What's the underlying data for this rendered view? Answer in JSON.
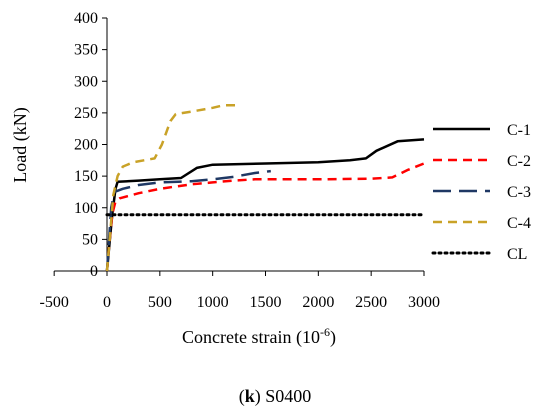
{
  "chart_data": {
    "type": "line",
    "xlabel_main": "Concrete strain (10",
    "xlabel_sup": "-6",
    "xlabel_end": ")",
    "ylabel": "Load (kN)",
    "xlim": [
      -500,
      3000
    ],
    "ylim": [
      0,
      400
    ],
    "xticks": [
      -500,
      0,
      500,
      1000,
      1500,
      2000,
      2500,
      3000
    ],
    "yticks": [
      0,
      50,
      100,
      150,
      200,
      250,
      300,
      350,
      400
    ],
    "grid": false,
    "legend_position": "right",
    "series": [
      {
        "name": "C-1",
        "color": "#000000",
        "dash": "solid",
        "x": [
          0,
          25,
          50,
          80,
          100,
          300,
          500,
          700,
          850,
          1000,
          1500,
          2000,
          2300,
          2450,
          2550,
          2750,
          3000
        ],
        "y": [
          0,
          45,
          90,
          130,
          141,
          143,
          145,
          147,
          163,
          168,
          170,
          172,
          175,
          178,
          190,
          205,
          208
        ]
      },
      {
        "name": "C-2",
        "color": "#ff0000",
        "dash": "dashed",
        "x": [
          0,
          20,
          50,
          80,
          120,
          300,
          500,
          800,
          1000,
          1200,
          1400,
          2000,
          2500,
          2700,
          2850,
          3000
        ],
        "y": [
          0,
          40,
          90,
          110,
          115,
          123,
          130,
          137,
          140,
          143,
          145,
          145,
          146,
          148,
          160,
          170
        ]
      },
      {
        "name": "C-3",
        "color": "#1f3864",
        "dash": "longdash",
        "x": [
          0,
          20,
          40,
          70,
          150,
          300,
          500,
          800,
          1000,
          1200,
          1400,
          1550
        ],
        "y": [
          0,
          50,
          100,
          125,
          130,
          136,
          140,
          142,
          145,
          149,
          155,
          158
        ]
      },
      {
        "name": "C-4",
        "color": "#c9a227",
        "dash": "dashed",
        "x": [
          0,
          30,
          60,
          100,
          150,
          250,
          350,
          450,
          520,
          600,
          650,
          800,
          1000,
          1100,
          1250
        ],
        "y": [
          0,
          60,
          120,
          150,
          165,
          172,
          175,
          178,
          200,
          237,
          248,
          252,
          258,
          262,
          262
        ]
      },
      {
        "name": "CL",
        "color": "#000000",
        "dash": "dotted",
        "x": [
          0,
          3000
        ],
        "y": [
          89,
          89
        ]
      }
    ]
  },
  "caption": {
    "letter": "k",
    "text": "S0400"
  }
}
